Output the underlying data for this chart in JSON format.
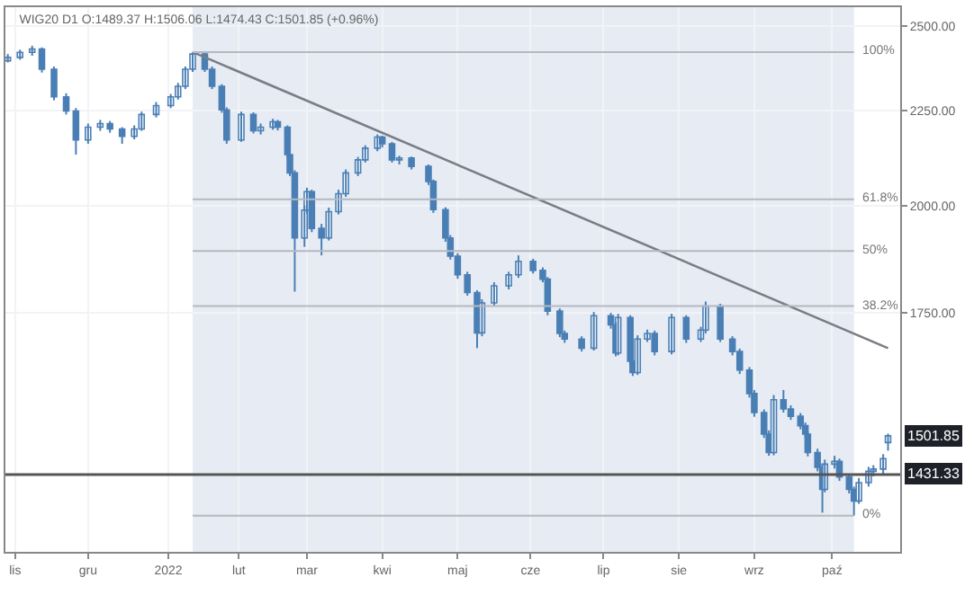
{
  "chart_data": {
    "type": "candlestick",
    "title": "WIG20 D1 O:1489.37 H:1506.06 L:1474.43 C:1501.85 (+0.96%)",
    "x": [
      "2021-10-29",
      "2021-11-03",
      "2021-11-08",
      "2021-11-12",
      "2021-11-17",
      "2021-11-22",
      "2021-11-26",
      "2021-12-01",
      "2021-12-06",
      "2021-12-10",
      "2021-12-15",
      "2021-12-20",
      "2021-12-23",
      "2021-12-29",
      "2022-01-04",
      "2022-01-07",
      "2022-01-10",
      "2022-01-13",
      "2022-01-18",
      "2022-01-21",
      "2022-01-25",
      "2022-01-27",
      "2022-02-02",
      "2022-02-07",
      "2022-02-10",
      "2022-02-15",
      "2022-02-17",
      "2022-02-21",
      "2022-02-22",
      "2022-02-24",
      "2022-02-28",
      "2022-03-01",
      "2022-03-03",
      "2022-03-07",
      "2022-03-10",
      "2022-03-14",
      "2022-03-17",
      "2022-03-22",
      "2022-03-25",
      "2022-03-30",
      "2022-04-01",
      "2022-04-05",
      "2022-04-08",
      "2022-04-13",
      "2022-04-20",
      "2022-04-22",
      "2022-04-27",
      "2022-04-29",
      "2022-05-02",
      "2022-05-06",
      "2022-05-10",
      "2022-05-12",
      "2022-05-17",
      "2022-05-23",
      "2022-05-27",
      "2022-06-02",
      "2022-06-06",
      "2022-06-08",
      "2022-06-13",
      "2022-06-15",
      "2022-06-22",
      "2022-06-27",
      "2022-07-04",
      "2022-07-06",
      "2022-07-07",
      "2022-07-12",
      "2022-07-13",
      "2022-07-15",
      "2022-07-19",
      "2022-07-22",
      "2022-07-29",
      "2022-08-04",
      "2022-08-10",
      "2022-08-12",
      "2022-08-18",
      "2022-08-23",
      "2022-08-26",
      "2022-08-30",
      "2022-09-01",
      "2022-09-05",
      "2022-09-07",
      "2022-09-09",
      "2022-09-13",
      "2022-09-16",
      "2022-09-20",
      "2022-09-22",
      "2022-09-23",
      "2022-09-27",
      "2022-09-29",
      "2022-09-30",
      "2022-10-04",
      "2022-10-06",
      "2022-10-10",
      "2022-10-12",
      "2022-10-14",
      "2022-10-18",
      "2022-10-20",
      "2022-10-24",
      "2022-10-26"
    ],
    "series": [
      {
        "type": "candlestick",
        "color": "#4a7fb5",
        "ohlc": [
          [
            2395,
            2415,
            2390,
            2405
          ],
          [
            2405,
            2428,
            2398,
            2420
          ],
          [
            2420,
            2440,
            2410,
            2430
          ],
          [
            2430,
            2435,
            2360,
            2370
          ],
          [
            2370,
            2378,
            2280,
            2290
          ],
          [
            2290,
            2300,
            2240,
            2250
          ],
          [
            2250,
            2258,
            2131,
            2170
          ],
          [
            2170,
            2215,
            2160,
            2205
          ],
          [
            2205,
            2225,
            2195,
            2215
          ],
          [
            2215,
            2222,
            2190,
            2200
          ],
          [
            2200,
            2205,
            2160,
            2180
          ],
          [
            2180,
            2210,
            2172,
            2200
          ],
          [
            2200,
            2248,
            2195,
            2240
          ],
          [
            2240,
            2275,
            2232,
            2265
          ],
          [
            2265,
            2298,
            2258,
            2290
          ],
          [
            2290,
            2330,
            2282,
            2320
          ],
          [
            2320,
            2378,
            2312,
            2370
          ],
          [
            2370,
            2421,
            2362,
            2415
          ],
          [
            2415,
            2420,
            2362,
            2370
          ],
          [
            2370,
            2378,
            2312,
            2320
          ],
          [
            2320,
            2326,
            2245,
            2253
          ],
          [
            2253,
            2260,
            2160,
            2170
          ],
          [
            2170,
            2248,
            2165,
            2240
          ],
          [
            2240,
            2246,
            2188,
            2195
          ],
          [
            2195,
            2215,
            2185,
            2205
          ],
          [
            2205,
            2228,
            2198,
            2220
          ],
          [
            2220,
            2225,
            2196,
            2205
          ],
          [
            2205,
            2210,
            2122,
            2131
          ],
          [
            2131,
            2140,
            2075,
            2083
          ],
          [
            2083,
            2090,
            1797,
            1921
          ],
          [
            1921,
            2000,
            1900,
            1989
          ],
          [
            1989,
            2045,
            1980,
            2035
          ],
          [
            2035,
            2040,
            1935,
            1944
          ],
          [
            1944,
            1955,
            1880,
            1921
          ],
          [
            1921,
            1995,
            1915,
            1985
          ],
          [
            1985,
            2040,
            1978,
            2030
          ],
          [
            2030,
            2092,
            2022,
            2083
          ],
          [
            2083,
            2125,
            2075,
            2117
          ],
          [
            2117,
            2156,
            2110,
            2148
          ],
          [
            2148,
            2185,
            2140,
            2178
          ],
          [
            2178,
            2182,
            2150,
            2160
          ],
          [
            2160,
            2165,
            2110,
            2117
          ],
          [
            2117,
            2128,
            2105,
            2122
          ],
          [
            2122,
            2126,
            2092,
            2100
          ],
          [
            2100,
            2105,
            2052,
            2061
          ],
          [
            2061,
            2066,
            1982,
            1990
          ],
          [
            1990,
            1996,
            1912,
            1921
          ],
          [
            1921,
            1928,
            1870,
            1878
          ],
          [
            1878,
            1885,
            1826,
            1835
          ],
          [
            1835,
            1842,
            1788,
            1795
          ],
          [
            1795,
            1800,
            1675,
            1707
          ],
          [
            1707,
            1780,
            1700,
            1772
          ],
          [
            1772,
            1818,
            1765,
            1810
          ],
          [
            1810,
            1842,
            1802,
            1835
          ],
          [
            1835,
            1880,
            1828,
            1866
          ],
          [
            1866,
            1872,
            1838,
            1845
          ],
          [
            1845,
            1852,
            1818,
            1825
          ],
          [
            1825,
            1830,
            1745,
            1754
          ],
          [
            1754,
            1760,
            1698,
            1706
          ],
          [
            1706,
            1712,
            1686,
            1694
          ],
          [
            1694,
            1700,
            1668,
            1675
          ],
          [
            1675,
            1752,
            1670,
            1744
          ],
          [
            1744,
            1750,
            1716,
            1724
          ],
          [
            1724,
            1730,
            1658,
            1665
          ],
          [
            1665,
            1748,
            1660,
            1740
          ],
          [
            1740,
            1745,
            1640,
            1648
          ],
          [
            1648,
            1652,
            1618,
            1625
          ],
          [
            1625,
            1702,
            1620,
            1694
          ],
          [
            1694,
            1714,
            1688,
            1706
          ],
          [
            1706,
            1712,
            1660,
            1668
          ],
          [
            1668,
            1748,
            1662,
            1740
          ],
          [
            1740,
            1745,
            1686,
            1694
          ],
          [
            1694,
            1720,
            1688,
            1713
          ],
          [
            1713,
            1775,
            1706,
            1765
          ],
          [
            1765,
            1770,
            1688,
            1694
          ],
          [
            1694,
            1700,
            1660,
            1668
          ],
          [
            1668,
            1674,
            1622,
            1630
          ],
          [
            1630,
            1636,
            1575,
            1583
          ],
          [
            1583,
            1590,
            1538,
            1546
          ],
          [
            1546,
            1552,
            1498,
            1505
          ],
          [
            1505,
            1512,
            1465,
            1471
          ],
          [
            1471,
            1580,
            1466,
            1571
          ],
          [
            1571,
            1590,
            1546,
            1553
          ],
          [
            1553,
            1560,
            1532,
            1539
          ],
          [
            1539,
            1545,
            1514,
            1521
          ],
          [
            1521,
            1527,
            1498,
            1505
          ],
          [
            1505,
            1510,
            1464,
            1471
          ],
          [
            1471,
            1478,
            1437,
            1444
          ],
          [
            1444,
            1450,
            1365,
            1405
          ],
          [
            1405,
            1458,
            1400,
            1450
          ],
          [
            1450,
            1465,
            1442,
            1455
          ],
          [
            1455,
            1460,
            1420,
            1427
          ],
          [
            1427,
            1432,
            1398,
            1405
          ],
          [
            1405,
            1410,
            1360,
            1385
          ],
          [
            1385,
            1425,
            1380,
            1417
          ],
          [
            1417,
            1445,
            1410,
            1437
          ],
          [
            1437,
            1448,
            1428,
            1441
          ],
          [
            1441,
            1468,
            1432,
            1460
          ],
          [
            1489.37,
            1506.06,
            1474.43,
            1501.85
          ]
        ]
      },
      {
        "type": "line",
        "color": "#7a7d85",
        "x": [
          "2022-01-13",
          "2022-10-26"
        ],
        "values": [
          2421,
          1675
        ]
      }
    ],
    "xlim": [
      "2021-10-28",
      "2022-10-31"
    ],
    "xticks": [
      {
        "value": "2021-11-01",
        "label": "lis"
      },
      {
        "value": "2021-12-01",
        "label": "gru"
      },
      {
        "value": "2022-01-03",
        "label": "2022"
      },
      {
        "value": "2022-02-01",
        "label": "lut"
      },
      {
        "value": "2022-03-01",
        "label": "mar"
      },
      {
        "value": "2022-04-01",
        "label": "kwi"
      },
      {
        "value": "2022-05-02",
        "label": "maj"
      },
      {
        "value": "2022-06-01",
        "label": "cze"
      },
      {
        "value": "2022-07-01",
        "label": "lip"
      },
      {
        "value": "2022-08-01",
        "label": "sie"
      },
      {
        "value": "2022-09-01",
        "label": "wrz"
      },
      {
        "value": "2022-10-03",
        "label": "paź"
      }
    ],
    "log": "y",
    "ylim": [
      1300,
      2560
    ],
    "yticks": [
      {
        "value": 1750,
        "label": "1750.00"
      },
      {
        "value": 2000,
        "label": "2000.00"
      },
      {
        "value": 2250,
        "label": "2250.00"
      },
      {
        "value": 2500,
        "label": "2500.00"
      }
    ],
    "grid": true,
    "bands": [
      {
        "axis": "x",
        "from": "2022-01-13",
        "to": "2022-10-12",
        "color": "#e7ecf4"
      }
    ],
    "ref_lines": [
      {
        "axis": "y",
        "value": 2421
      },
      {
        "axis": "y",
        "value": 2016
      },
      {
        "axis": "y",
        "value": 1890
      },
      {
        "axis": "y",
        "value": 1765
      },
      {
        "axis": "y",
        "value": 1360
      },
      {
        "axis": "y",
        "value": 1431.33,
        "label": "1431.33",
        "color": "#555555"
      }
    ],
    "annotations": [
      {
        "text": "1501.85",
        "y": 1501.85
      },
      {
        "text": "100%",
        "x": "2022-10-12",
        "y": 2421
      },
      {
        "text": "61.8%",
        "x": "2022-10-12",
        "y": 2016
      },
      {
        "text": "50%",
        "x": "2022-10-12",
        "y": 1890
      },
      {
        "text": "38.2%",
        "x": "2022-10-12",
        "y": 1765
      },
      {
        "text": "0%",
        "x": "2022-10-12",
        "y": 1360
      }
    ]
  }
}
